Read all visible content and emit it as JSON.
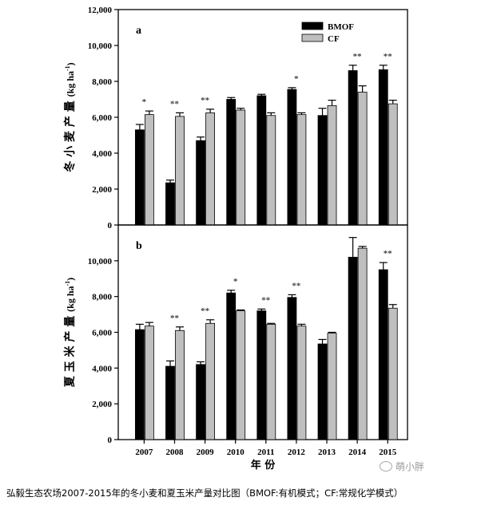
{
  "chart_data": [
    {
      "type": "bar",
      "panel_label": "a",
      "ylabel": "冬 小 麦 产 量 (kg ha-1)",
      "ylabel_main": "冬 小 麦 产 量",
      "ylabel_unit": "(kg ha",
      "ylabel_sup": "-1",
      "ylabel_close": ")",
      "ylim": [
        0,
        12000
      ],
      "yticks": [
        0,
        2000,
        4000,
        6000,
        8000,
        10000,
        12000
      ],
      "ytick_labels": [
        "0",
        "2,000",
        "4,000",
        "6,000",
        "8,000",
        "10,000",
        "12,000"
      ],
      "categories": [
        "2007",
        "2008",
        "2009",
        "2010",
        "2011",
        "2012",
        "2013",
        "2014",
        "2015"
      ],
      "series": [
        {
          "name": "BMOF",
          "values": [
            5300,
            2350,
            4700,
            7000,
            7200,
            7550,
            6100,
            8600,
            8650
          ],
          "errors": [
            300,
            150,
            200,
            100,
            80,
            100,
            400,
            300,
            250
          ]
        },
        {
          "name": "CF",
          "values": [
            6150,
            6050,
            6250,
            6400,
            6100,
            6150,
            6650,
            7400,
            6750
          ],
          "errors": [
            200,
            200,
            200,
            100,
            150,
            100,
            300,
            350,
            200
          ]
        }
      ],
      "significance": [
        "*",
        "**",
        "**",
        "",
        "",
        "*",
        "",
        "**",
        "**"
      ],
      "legend": {
        "placement": "top-right",
        "entries": [
          "BMOF",
          "CF"
        ]
      }
    },
    {
      "type": "bar",
      "panel_label": "b",
      "ylabel": "夏 玉 米 产 量 (kg ha-1)",
      "ylabel_main": "夏 玉 米 产 量",
      "ylabel_unit": "(kg ha",
      "ylabel_sup": "-1",
      "ylabel_close": ")",
      "ylim": [
        0,
        12000
      ],
      "yticks": [
        0,
        2000,
        4000,
        6000,
        8000,
        10000
      ],
      "ytick_labels": [
        "0",
        "2,000",
        "4,000",
        "6,000",
        "8,000",
        "10,000"
      ],
      "categories": [
        "2007",
        "2008",
        "2009",
        "2010",
        "2011",
        "2012",
        "2013",
        "2014",
        "2015"
      ],
      "series": [
        {
          "name": "BMOF",
          "values": [
            6150,
            4100,
            4200,
            8200,
            7200,
            7950,
            5350,
            10200,
            9500
          ],
          "errors": [
            300,
            300,
            150,
            150,
            100,
            150,
            250,
            1100,
            400
          ]
        },
        {
          "name": "CF",
          "values": [
            6350,
            6100,
            6500,
            7200,
            6450,
            6350,
            5950,
            10700,
            7350
          ],
          "errors": [
            200,
            200,
            200,
            50,
            50,
            100,
            50,
            100,
            200
          ]
        }
      ],
      "significance": [
        "",
        "**",
        "**",
        "*",
        "**",
        "**",
        "",
        "",
        "**"
      ],
      "xlabel": "年 份"
    }
  ],
  "caption": "弘毅生态农场2007-2015年的冬小麦和夏玉米产量对比图（BMOF:有机模式；CF:常规化学模式）",
  "watermark": "萌小胖",
  "colors": {
    "BMOF": "#000000",
    "CF": "#bfbfbf"
  }
}
